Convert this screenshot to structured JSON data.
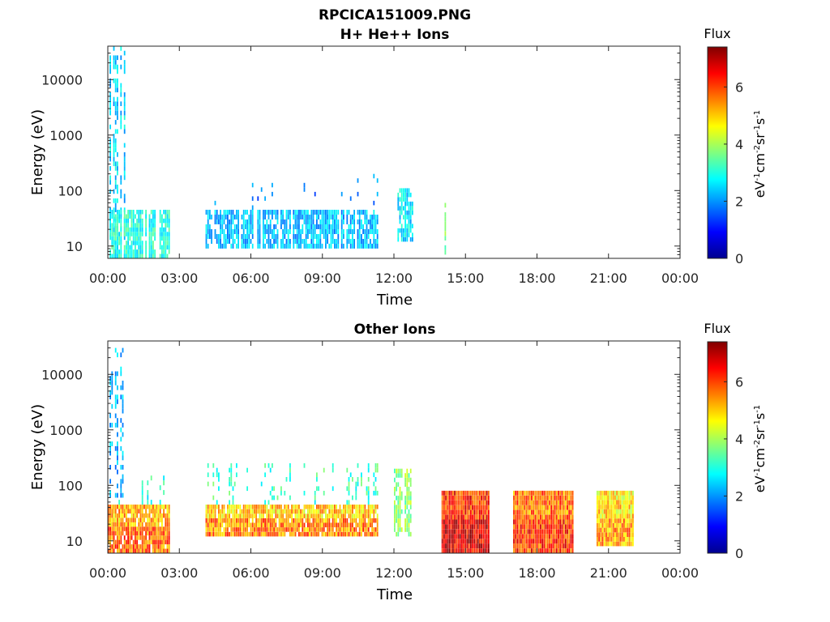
{
  "figure": {
    "title_line1": "RPCICA151009.PNG",
    "title_line2": "H+ He++ Ions"
  },
  "chart_data": [
    {
      "type": "heatmap",
      "title": "H+ He++ Ions",
      "xlabel": "Time",
      "ylabel": "Energy (eV)",
      "x_ticks": [
        "00:00",
        "03:00",
        "06:00",
        "09:00",
        "12:00",
        "15:00",
        "18:00",
        "21:00",
        "00:00"
      ],
      "x_range_hours": [
        0,
        24
      ],
      "y_scale": "log",
      "y_range_ev": [
        6,
        40000
      ],
      "y_ticks": [
        "10",
        "100",
        "1000",
        "10000"
      ],
      "colorbar": {
        "title": "Flux",
        "label": "eV⁻¹cm⁻²sr⁻¹s⁻¹",
        "range": [
          0,
          7.4
        ],
        "ticks": [
          "0",
          "2",
          "4",
          "6"
        ],
        "colormap": "jet"
      },
      "segments": [
        {
          "start_h": 0.0,
          "end_h": 0.7,
          "emin": 6,
          "emax": 40000,
          "flux": 2.5,
          "density": 0.55,
          "level": "low"
        },
        {
          "start_h": 0.0,
          "end_h": 2.6,
          "emin": 6,
          "emax": 45,
          "flux": 3.0,
          "density": 0.85,
          "level": "low"
        },
        {
          "start_h": 4.1,
          "end_h": 11.3,
          "emin": 9,
          "emax": 45,
          "flux": 2.3,
          "density": 0.8,
          "level": "low"
        },
        {
          "start_h": 4.1,
          "end_h": 11.3,
          "emin": 45,
          "emax": 200,
          "flux": 1.8,
          "density": 0.15,
          "level": "low"
        },
        {
          "start_h": 12.0,
          "end_h": 12.8,
          "emin": 12,
          "emax": 110,
          "flux": 2.6,
          "density": 0.7,
          "level": "low"
        },
        {
          "start_h": 14.05,
          "end_h": 14.15,
          "emin": 7,
          "emax": 60,
          "flux": 3.5,
          "density": 0.6,
          "level": "low"
        }
      ]
    },
    {
      "type": "heatmap",
      "title": "Other Ions",
      "xlabel": "Time",
      "ylabel": "Energy (eV)",
      "x_ticks": [
        "00:00",
        "03:00",
        "06:00",
        "09:00",
        "12:00",
        "15:00",
        "18:00",
        "21:00",
        "00:00"
      ],
      "x_range_hours": [
        0,
        24
      ],
      "y_scale": "log",
      "y_range_ev": [
        6,
        40000
      ],
      "y_ticks": [
        "10",
        "100",
        "1000",
        "10000"
      ],
      "colorbar": {
        "title": "Flux",
        "label": "eV⁻¹cm⁻²sr⁻¹s⁻¹",
        "range": [
          0,
          7.4
        ],
        "ticks": [
          "0",
          "2",
          "4",
          "6"
        ],
        "colormap": "jet"
      },
      "segments": [
        {
          "start_h": 0.0,
          "end_h": 0.7,
          "emin": 60,
          "emax": 30000,
          "flux": 2.2,
          "density": 0.35,
          "level": "low"
        },
        {
          "start_h": 0.0,
          "end_h": 2.6,
          "emin": 6,
          "emax": 45,
          "flux": 5.2,
          "density": 0.9,
          "level": "high"
        },
        {
          "start_h": 0.0,
          "end_h": 2.6,
          "emin": 45,
          "emax": 150,
          "flux": 3.0,
          "density": 0.25,
          "level": "low"
        },
        {
          "start_h": 4.1,
          "end_h": 11.3,
          "emin": 12,
          "emax": 45,
          "flux": 5.0,
          "density": 0.9,
          "level": "high"
        },
        {
          "start_h": 4.1,
          "end_h": 11.3,
          "emin": 45,
          "emax": 250,
          "flux": 3.2,
          "density": 0.3,
          "level": "low"
        },
        {
          "start_h": 12.0,
          "end_h": 12.8,
          "emin": 12,
          "emax": 200,
          "flux": 3.8,
          "density": 0.7,
          "level": "low"
        },
        {
          "start_h": 14.0,
          "end_h": 16.0,
          "emin": 6,
          "emax": 80,
          "flux": 6.2,
          "density": 1.0,
          "level": "high"
        },
        {
          "start_h": 17.0,
          "end_h": 19.5,
          "emin": 6,
          "emax": 80,
          "flux": 5.6,
          "density": 1.0,
          "level": "high"
        },
        {
          "start_h": 20.5,
          "end_h": 22.0,
          "emin": 8,
          "emax": 80,
          "flux": 4.8,
          "density": 1.0,
          "level": "high"
        }
      ]
    }
  ]
}
